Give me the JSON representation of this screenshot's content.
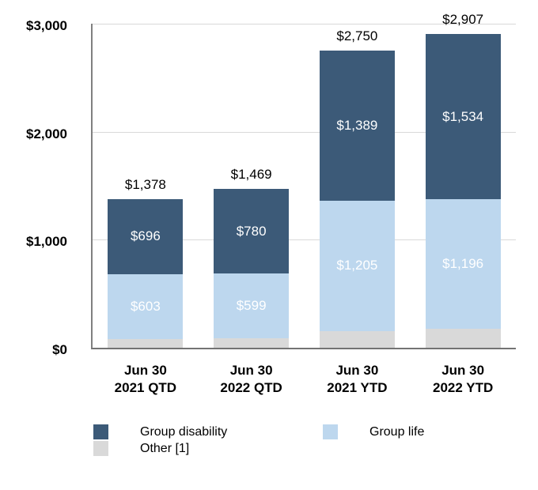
{
  "chart_data": {
    "type": "bar",
    "stacked": true,
    "title": "",
    "xlabel": "",
    "ylabel": "",
    "grid": "horizontal",
    "categories": [
      "Jun 30\n2021 QTD",
      "Jun 30\n2022 QTD",
      "Jun 30\n2021 YTD",
      "Jun 30\n2022 YTD"
    ],
    "series": [
      {
        "name": "Group disability",
        "color": "#3c5a78",
        "label_color": "#ffffff",
        "values": [
          696,
          780,
          1389,
          1534
        ],
        "labels": [
          "$696",
          "$780",
          "$1,389",
          "$1,534"
        ]
      },
      {
        "name": "Group life",
        "color": "#bdd7ee",
        "label_color": "#ffffff",
        "values": [
          603,
          599,
          1205,
          1196
        ],
        "labels": [
          "$603",
          "$599",
          "$1,205",
          "$1,196"
        ]
      },
      {
        "name": "Other [1]",
        "color": "#d9d9d9",
        "label_color": "#ffffff",
        "values": [
          79,
          90,
          156,
          177
        ],
        "labels": [
          "",
          "",
          "",
          ""
        ]
      }
    ],
    "stack_bottom_to_top": [
      "Other [1]",
      "Group life",
      "Group disability"
    ],
    "totals": {
      "values": [
        1378,
        1469,
        2750,
        2907
      ],
      "labels": [
        "$1,378",
        "$1,469",
        "$2,750",
        "$2,907"
      ]
    },
    "y_axis": {
      "min": 0,
      "max": 3000,
      "tick_values": [
        3000,
        2000,
        1000,
        0
      ],
      "tick_labels": [
        "$3,000",
        "$2,000",
        "$1,000",
        "$0"
      ]
    },
    "legend": {
      "position": "bottom-left",
      "items": [
        {
          "label": "Group disability",
          "color": "#3c5a78"
        },
        {
          "label": "Group life",
          "color": "#bdd7ee"
        },
        {
          "label": "Other [1]",
          "color": "#d9d9d9"
        }
      ]
    }
  },
  "colors": {
    "axis": "#808080",
    "gridline": "#d9d9d9",
    "text": "#000000",
    "background": "#ffffff"
  }
}
